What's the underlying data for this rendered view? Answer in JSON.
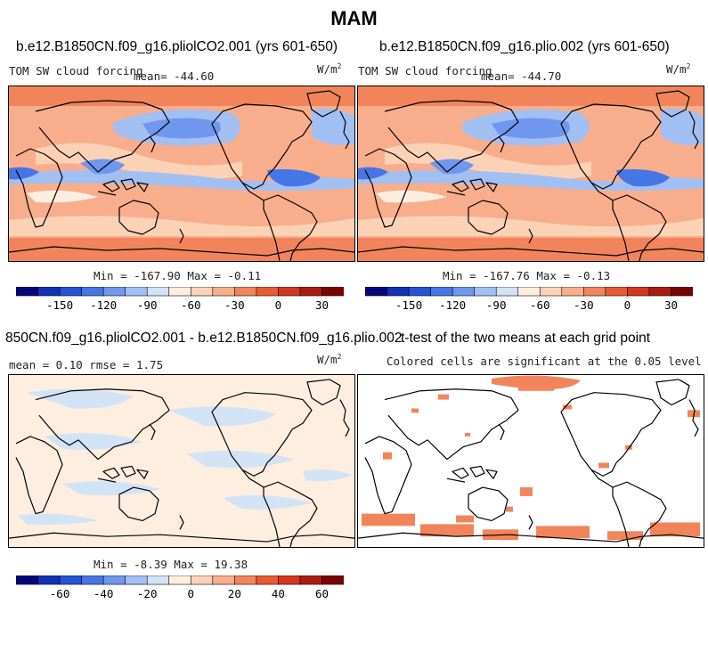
{
  "figure": {
    "title": "MAM"
  },
  "panels": [
    {
      "id": "p1",
      "title": "b.e12.B1850CN.f09_g16.pliolCO2.001 (yrs 601-650)",
      "left_label": "TOM SW cloud forcing",
      "center_label": "mean= -44.60",
      "units_base": "W/m",
      "units_exp": "2",
      "minmax": "Min = -167.90 Max =  -0.11"
    },
    {
      "id": "p2",
      "title": "b.e12.B1850CN.f09_g16.plio.002 (yrs 601-650)",
      "left_label": "TOM SW cloud forcing",
      "center_label": "mean= -44.70",
      "units_base": "W/m",
      "units_exp": "2",
      "minmax": "Min = -167.76 Max =  -0.13"
    },
    {
      "id": "p3",
      "title": "850CN.f09_g16.pliolCO2.001 - b.e12.B1850CN.f09_g16.plio.002",
      "left_label": "mean =    0.10    rmse =    1.75",
      "units_base": "W/m",
      "units_exp": "2",
      "minmax": "Min =  -8.39 Max =  19.38"
    },
    {
      "id": "p4",
      "title": "t-test of the two means at each grid point",
      "center_label": "Colored cells are significant at the 0.05 level"
    }
  ],
  "colorbars": {
    "main": {
      "colors": [
        "#08057a",
        "#1230b4",
        "#2553d4",
        "#4676e6",
        "#6f97ee",
        "#a2bff3",
        "#d3e3f6",
        "#fdeee0",
        "#fcd2b7",
        "#f8ae8c",
        "#f2845c",
        "#e85b35",
        "#d23721",
        "#aa1c12",
        "#780404"
      ],
      "ticks": [
        "-150",
        "-120",
        "-90",
        "-60",
        "-30",
        "0",
        "30"
      ],
      "tick_values": [
        -150,
        -120,
        -90,
        -60,
        -30,
        0,
        30
      ],
      "min": -180,
      "max": 45,
      "step": 15
    },
    "diff": {
      "colors": [
        "#08057a",
        "#1230b4",
        "#2553d4",
        "#4676e6",
        "#6f97ee",
        "#a2bff3",
        "#d3e3f6",
        "#fdeee0",
        "#fcd2b7",
        "#f8ae8c",
        "#f2845c",
        "#e85b35",
        "#d23721",
        "#aa1c12",
        "#780404"
      ],
      "ticks": [
        "-60",
        "-40",
        "-20",
        "0",
        "20",
        "40",
        "60"
      ],
      "tick_values": [
        -60,
        -40,
        -20,
        0,
        20,
        40,
        60
      ],
      "min": -80,
      "max": 70,
      "step": 10
    }
  },
  "chart_data": [
    {
      "type": "heatmap",
      "title": "b.e12.B1850CN.f09_g16.pliolCO2.001 (yrs 601-650)",
      "variable": "TOM SW cloud forcing",
      "units": "W/m2",
      "mean": -44.6,
      "min": -167.9,
      "max": -0.11
    },
    {
      "type": "heatmap",
      "title": "b.e12.B1850CN.f09_g16.plio.002 (yrs 601-650)",
      "variable": "TOM SW cloud forcing",
      "units": "W/m2",
      "mean": -44.7,
      "min": -167.76,
      "max": -0.13
    },
    {
      "type": "heatmap",
      "title": "850CN.f09_g16.pliolCO2.001 - b.e12.B1850CN.f09_g16.plio.002",
      "units": "W/m2",
      "mean": 0.1,
      "rmse": 1.75,
      "min": -8.39,
      "max": 19.38
    },
    {
      "type": "heatmap",
      "title": "t-test of the two means at each grid point",
      "annotation": "Colored cells are significant at the 0.05 level",
      "significance_level": 0.05
    }
  ]
}
